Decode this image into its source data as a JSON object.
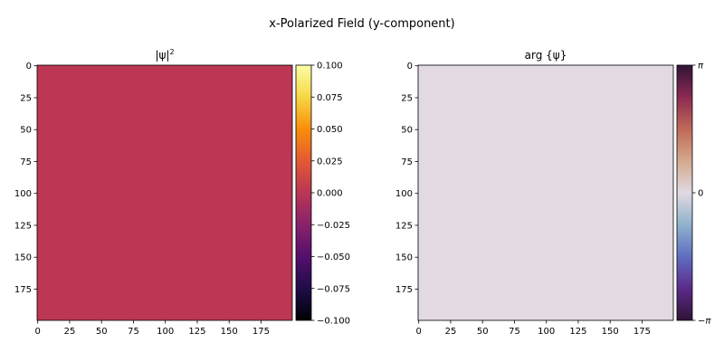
{
  "figure": {
    "title": "x-Polarized Field (y-component)"
  },
  "chart_data": [
    {
      "type": "heatmap",
      "title": "|ψ|",
      "title_superscript": "2",
      "xlim": [
        -0.5,
        199.5
      ],
      "ylim": [
        199.5,
        -0.5
      ],
      "x_ticks": [
        0,
        25,
        50,
        75,
        100,
        125,
        150,
        175
      ],
      "y_ticks": [
        0,
        25,
        50,
        75,
        100,
        125,
        150,
        175
      ],
      "grid": false,
      "field_value": 0.0,
      "field_color": "#bc3754",
      "colorbar": {
        "colormap": "inferno",
        "range": [
          -0.1,
          0.1
        ],
        "ticks": [
          0.1,
          0.075,
          0.05,
          0.025,
          0.0,
          -0.025,
          -0.05,
          -0.075,
          -0.1
        ],
        "tick_labels": [
          "0.100",
          "0.075",
          "0.050",
          "0.025",
          "0.000",
          "−0.025",
          "−0.050",
          "−0.075",
          "−0.100"
        ]
      }
    },
    {
      "type": "heatmap",
      "title": "arg {ψ}",
      "xlim": [
        -0.5,
        199.5
      ],
      "ylim": [
        199.5,
        -0.5
      ],
      "x_ticks": [
        0,
        25,
        50,
        75,
        100,
        125,
        150,
        175
      ],
      "y_ticks": [
        0,
        25,
        50,
        75,
        100,
        125,
        150,
        175
      ],
      "grid": false,
      "field_value": 0.0,
      "field_color": "#e2d9e2",
      "colorbar": {
        "colormap": "twilight",
        "range": [
          -3.14159,
          3.14159
        ],
        "ticks": [
          3.14159,
          0,
          -3.14159
        ],
        "tick_labels": [
          "π",
          "0",
          "−π"
        ]
      }
    }
  ]
}
